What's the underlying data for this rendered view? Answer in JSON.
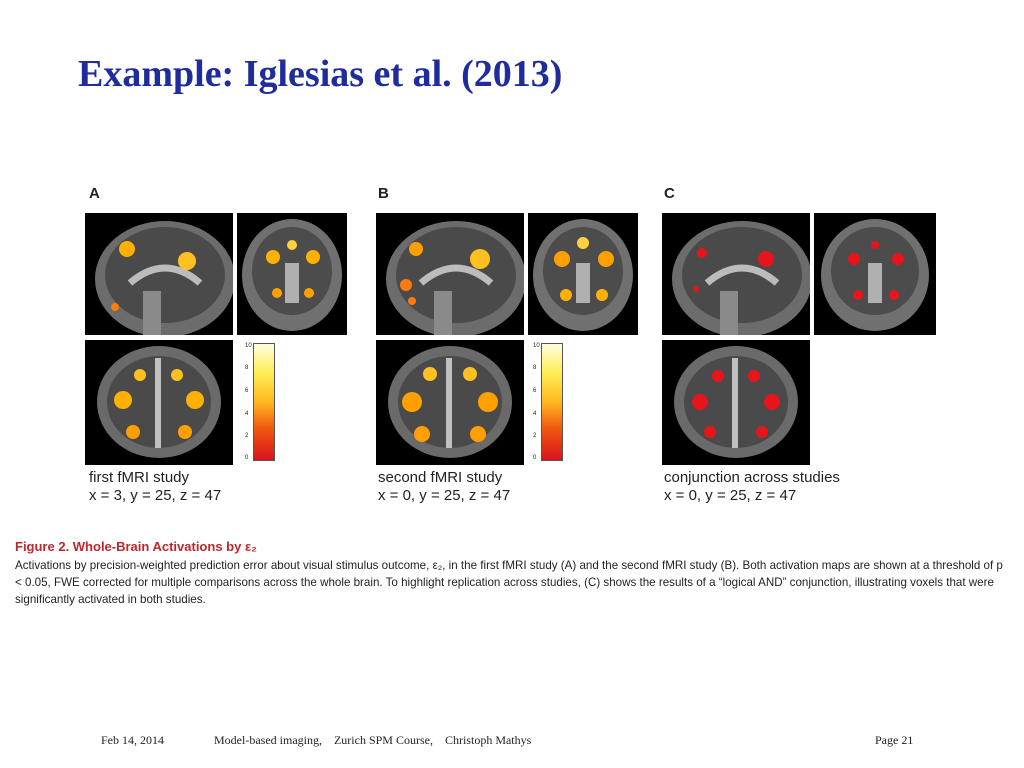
{
  "title": "Example: Iglesias et al. (2013)",
  "figure": {
    "panels": [
      {
        "letter": "A",
        "label_line1": "first fMRI study",
        "label_line2": "x = 3, y = 25, z = 47",
        "blob_color": "#ffb000"
      },
      {
        "letter": "B",
        "label_line1": "second fMRI study",
        "label_line2": "x = 0, y = 25, z = 47",
        "blob_color": "#ffa000"
      },
      {
        "letter": "C",
        "label_line1": "conjunction across studies",
        "label_line2": "x = 0, y = 25, z = 47",
        "blob_color": "#e8141c"
      }
    ],
    "colorbar_ticks": [
      "10",
      "8",
      "6",
      "4",
      "2",
      "0"
    ]
  },
  "caption": {
    "title": "Figure 2.  Whole-Brain Activations by ε₂",
    "body": "Activations by precision-weighted prediction error about visual stimulus outcome, ε₂, in the first fMRI study (A) and the second fMRI study (B). Both activation maps are shown at a threshold of p < 0.05, FWE corrected for multiple comparisons across the whole brain. To highlight replication across studies, (C) shows the results of a “logical AND” conjunction, illustrating voxels that were significantly activated in both studies."
  },
  "footer": {
    "date": "Feb 14, 2014",
    "course": "Model-based imaging,    Zurich SPM Course,    Christoph Mathys",
    "page": "Page 21"
  }
}
